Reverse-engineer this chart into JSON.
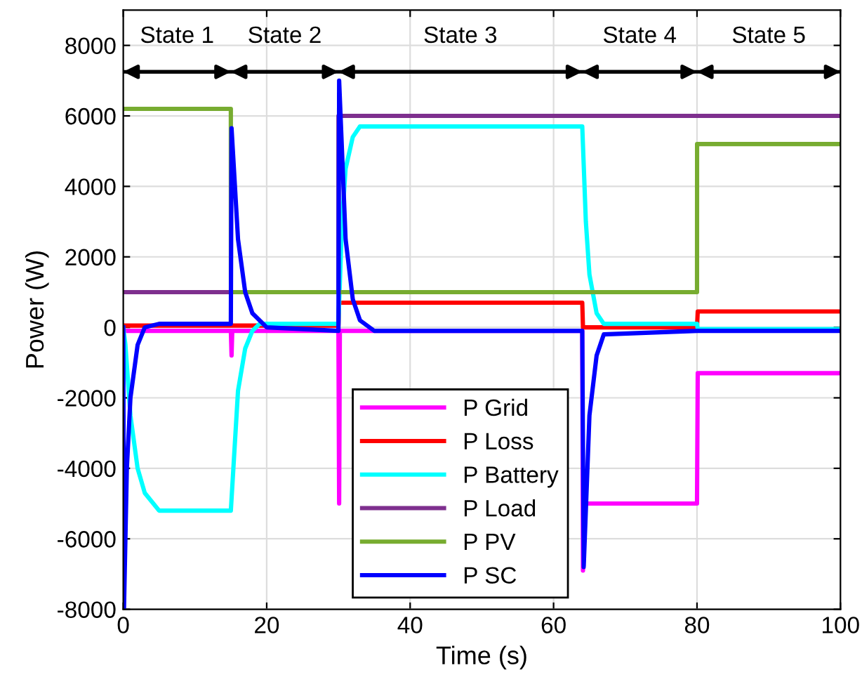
{
  "chart_data": {
    "type": "line",
    "xlabel": "Time (s)",
    "ylabel": "Power (W)",
    "xlim": [
      0,
      100
    ],
    "xticks": [
      0,
      20,
      40,
      60,
      80,
      100
    ],
    "ylim": [
      -8000,
      9000
    ],
    "yticks": [
      -8000,
      -6000,
      -4000,
      -2000,
      0,
      2000,
      4000,
      6000,
      8000
    ],
    "grid": true,
    "legend": "bottom",
    "marker": "none",
    "line_style": "solid",
    "series": [
      {
        "name": "P Grid",
        "color": "#ff00ff",
        "x": [
          0,
          15,
          15.1,
          15.2,
          30,
          30.1,
          30.2,
          64,
          64.1,
          64.3,
          80,
          80.1,
          100
        ],
        "values": [
          -100,
          -100,
          -800,
          -100,
          -100,
          -5000,
          -100,
          -100,
          -6900,
          -5000,
          -5000,
          -1300,
          -1300
        ]
      },
      {
        "name": "P Loss",
        "color": "#ff0000",
        "x": [
          0,
          30,
          30.1,
          64,
          64.1,
          80,
          80.1,
          100
        ],
        "values": [
          50,
          50,
          700,
          700,
          0,
          0,
          450,
          450
        ]
      },
      {
        "name": "P Battery",
        "color": "#00ffff",
        "x": [
          0,
          0.3,
          1,
          2,
          3,
          5,
          15,
          15.5,
          16,
          17,
          18,
          19,
          30,
          30.5,
          31,
          32,
          33,
          64,
          64.5,
          65,
          66,
          67,
          80,
          80.1,
          100
        ],
        "values": [
          0,
          -500,
          -2500,
          -4000,
          -4700,
          -5200,
          -5200,
          -3500,
          -1800,
          -600,
          -100,
          100,
          100,
          3000,
          4500,
          5400,
          5700,
          5700,
          3000,
          1500,
          400,
          100,
          100,
          -50,
          -50
        ]
      },
      {
        "name": "P Load",
        "color": "#7e2f8e",
        "x": [
          0,
          30,
          30.01,
          100
        ],
        "values": [
          1000,
          1000,
          6000,
          6000
        ]
      },
      {
        "name": "P PV",
        "color": "#77ac30",
        "x": [
          0,
          15,
          15.01,
          80,
          80.01,
          100
        ],
        "values": [
          6200,
          6200,
          1000,
          1000,
          5200,
          5200
        ]
      },
      {
        "name": "P SC",
        "color": "#0000ff",
        "x": [
          0,
          0.1,
          0.5,
          1,
          2,
          3,
          5,
          15,
          15.1,
          16,
          17,
          18,
          20,
          30,
          30.1,
          31,
          32,
          33,
          35,
          64,
          64.2,
          65,
          66,
          67,
          80,
          100
        ],
        "values": [
          0,
          -8000,
          -4000,
          -2000,
          -500,
          0,
          100,
          100,
          5650,
          2500,
          1000,
          400,
          0,
          -100,
          7000,
          2500,
          800,
          200,
          -100,
          -100,
          -6800,
          -2500,
          -800,
          -200,
          -100,
          -100
        ]
      },
      {
        "color": "#000000",
        "x": [
          0,
          15,
          30,
          64,
          80,
          100
        ],
        "values": [
          7250,
          7250,
          7250,
          7250,
          7250,
          7250
        ]
      }
    ],
    "annotations": [
      "State 1",
      "State 2",
      "State 3",
      "State 4",
      "State 5"
    ]
  }
}
